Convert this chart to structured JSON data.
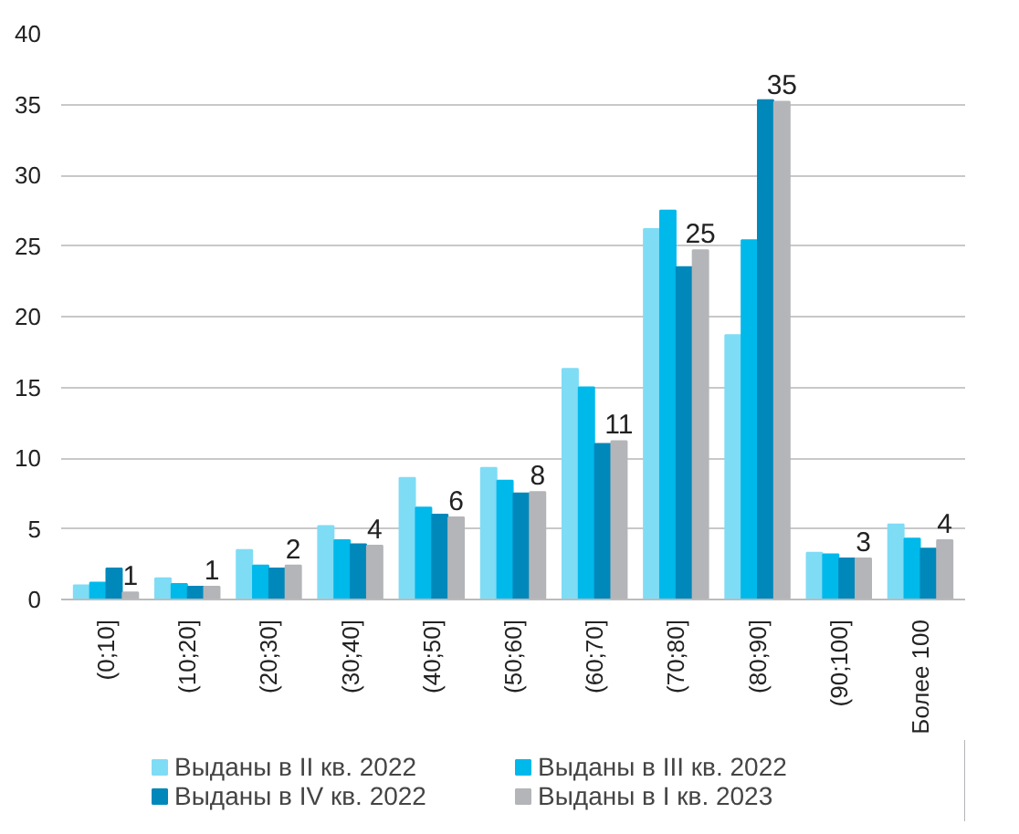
{
  "chart_data": {
    "type": "bar",
    "categories": [
      "(0;10]",
      "(10;20]",
      "(20;30]",
      "(30;40]",
      "(40;50]",
      "(50;60]",
      "(60;70]",
      "(70;80]",
      "(80;90]",
      "(90;100]",
      "Более 100"
    ],
    "series": [
      {
        "name": "Выданы в II кв. 2022",
        "color": "#7fdcf5",
        "values": [
          1.0,
          1.5,
          3.5,
          5.2,
          8.6,
          9.3,
          16.3,
          26.2,
          18.7,
          3.3,
          5.3
        ]
      },
      {
        "name": "Выданы в III кв. 2022",
        "color": "#00b9eb",
        "values": [
          1.2,
          1.1,
          2.4,
          4.2,
          6.5,
          8.4,
          15.0,
          27.5,
          25.4,
          3.2,
          4.3
        ]
      },
      {
        "name": "Выданы в IV кв. 2022",
        "color": "#0088bb",
        "values": [
          2.2,
          0.9,
          2.2,
          3.9,
          6.0,
          7.5,
          11.0,
          23.5,
          35.3,
          2.9,
          3.6
        ]
      },
      {
        "name": "Выданы в I кв. 2023",
        "color": "#b4b5b8",
        "values": [
          0.5,
          0.9,
          2.4,
          3.8,
          5.8,
          7.6,
          11.2,
          24.7,
          35.2,
          2.9,
          4.2
        ],
        "value_labels": [
          "1",
          "1",
          "2",
          "4",
          "6",
          "8",
          "11",
          "25",
          "35",
          "3",
          "4"
        ]
      }
    ],
    "ylim": [
      0,
      40
    ],
    "yticks": [
      0,
      5,
      10,
      15,
      20,
      25,
      30,
      35,
      40
    ],
    "grid": "y",
    "legend": "bottom"
  }
}
